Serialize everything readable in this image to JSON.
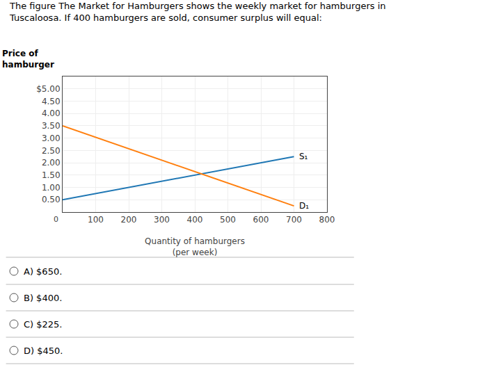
{
  "chart_data": {
    "type": "line",
    "title": "The figure The Market for Hamburgers shows the weekly market for hamburgers in\nTuscaloosa. If 400 hamburgers are sold, consumer surplus will equal:",
    "y_label": "Price of\nhamburger",
    "x_label": "Quantity of hamburgers\n(per week)",
    "xlim": [
      0,
      800
    ],
    "ylim": [
      0,
      5.5
    ],
    "xticks": [
      100,
      200,
      300,
      400,
      500,
      600,
      700,
      800
    ],
    "yticks": [
      {
        "value": 0.5,
        "label": "0.50"
      },
      {
        "value": 1.0,
        "label": "1.00"
      },
      {
        "value": 1.5,
        "label": "1.50"
      },
      {
        "value": 2.0,
        "label": "2.00"
      },
      {
        "value": 2.5,
        "label": "2.50"
      },
      {
        "value": 3.0,
        "label": "3.00"
      },
      {
        "value": 3.5,
        "label": "3.50"
      },
      {
        "value": 4.0,
        "label": "4.00"
      },
      {
        "value": 4.5,
        "label": "4.50"
      },
      {
        "value": 5.0,
        "label": "$5.00"
      }
    ],
    "grid": true,
    "series": [
      {
        "name": "S₁",
        "x": [
          0,
          700
        ],
        "values": [
          0.5,
          2.25
        ]
      },
      {
        "name": "D₁",
        "x": [
          0,
          700
        ],
        "values": [
          3.5,
          0.25
        ]
      }
    ],
    "annotations": [
      {
        "text": "0",
        "x": 0,
        "y": 0
      }
    ],
    "choices": [
      "A) $650.",
      "B) $400.",
      "C) $225.",
      "D) $450."
    ]
  }
}
